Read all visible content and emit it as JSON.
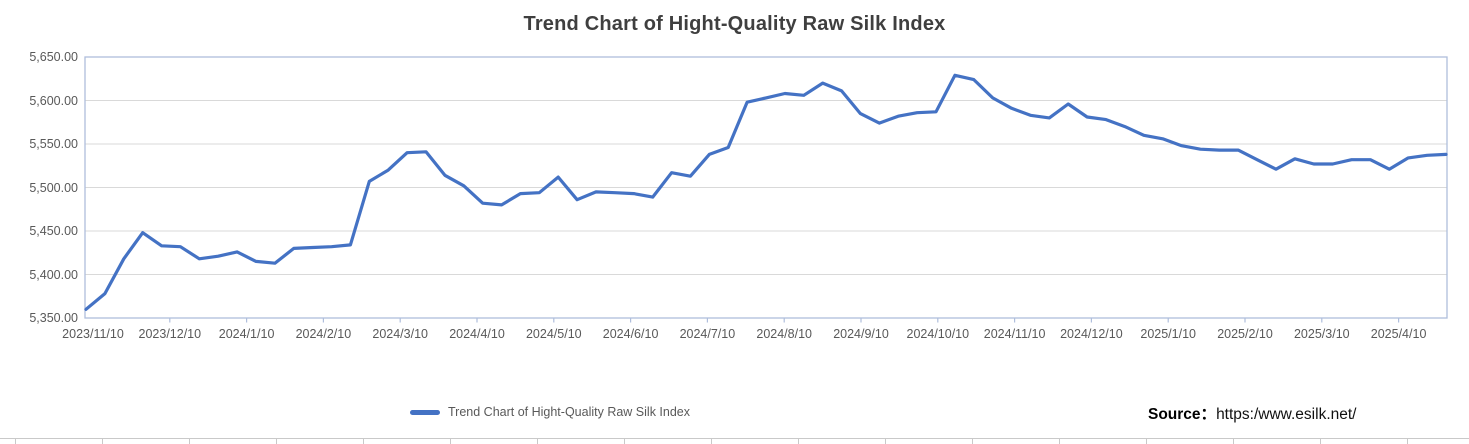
{
  "title": "Trend Chart of Hight-Quality Raw Silk Index",
  "legend": {
    "label": "Trend Chart of Hight-Quality Raw Silk Index"
  },
  "source": {
    "prefix": "Source：",
    "url": "https:/www.esilk.net/"
  },
  "colors": {
    "line": "#4472C4",
    "gridline": "#D9D9D9",
    "plot_border": "#AFBEDC",
    "axis_text": "#595959",
    "title_text": "#3F3F3F",
    "source_text": "#000000",
    "sheet_edge": "#C9C9C9"
  },
  "chart_data": {
    "type": "line",
    "title": "Trend Chart of Hight-Quality Raw Silk Index",
    "xlabel": "",
    "ylabel": "",
    "ylim": [
      5350,
      5650
    ],
    "y_tick_step": 50,
    "grid": "horizontal",
    "legend_position": "bottom",
    "y_tick_labels": [
      "5,650.00",
      "5,600.00",
      "5,550.00",
      "5,500.00",
      "5,450.00",
      "5,400.00",
      "5,350.00"
    ],
    "x_tick_labels": [
      "2023/11/10",
      "2023/12/10",
      "2024/1/10",
      "2024/2/10",
      "2024/3/10",
      "2024/4/10",
      "2024/5/10",
      "2024/6/10",
      "2024/7/10",
      "2024/8/10",
      "2024/9/10",
      "2024/10/10",
      "2024/11/10",
      "2024/12/10",
      "2025/1/10",
      "2025/2/10",
      "2025/3/10",
      "2025/4/10"
    ],
    "series": [
      {
        "name": "Trend Chart of Hight-Quality Raw Silk Index",
        "color": "#4472C4",
        "values": [
          5360,
          5378,
          5418,
          5448,
          5433,
          5432,
          5418,
          5421,
          5426,
          5415,
          5413,
          5430,
          5431,
          5432,
          5434,
          5507,
          5520,
          5540,
          5541,
          5514,
          5502,
          5482,
          5480,
          5493,
          5494,
          5512,
          5486,
          5495,
          5494,
          5493,
          5489,
          5517,
          5513,
          5538,
          5546,
          5598,
          5603,
          5608,
          5606,
          5620,
          5611,
          5585,
          5574,
          5582,
          5586,
          5587,
          5629,
          5624,
          5603,
          5591,
          5583,
          5580,
          5596,
          5581,
          5578,
          5570,
          5560,
          5556,
          5548,
          5544,
          5543,
          5543,
          5532,
          5521,
          5533,
          5527,
          5527,
          5532,
          5532,
          5521,
          5534,
          5537,
          5538
        ]
      }
    ]
  }
}
